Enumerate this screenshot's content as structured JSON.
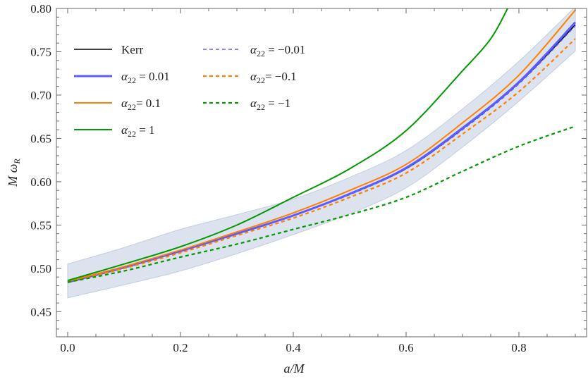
{
  "chart_data": {
    "type": "line",
    "title": "",
    "xlabel": "a/M",
    "ylabel": {
      "main": "M ω",
      "sub": "R"
    },
    "xlim": [
      -0.02,
      0.92
    ],
    "ylim": [
      0.421,
      0.8
    ],
    "x_ticks": [
      "0.0",
      "0.2",
      "0.4",
      "0.6",
      "0.8"
    ],
    "x_tick_values": [
      0,
      0.2,
      0.4,
      0.6,
      0.8
    ],
    "y_ticks": [
      "0.45",
      "0.50",
      "0.55",
      "0.60",
      "0.65",
      "0.70",
      "0.75",
      "0.80"
    ],
    "y_tick_values": [
      0.45,
      0.5,
      0.55,
      0.6,
      0.65,
      0.7,
      0.75,
      0.8
    ],
    "grid": false,
    "legend_placement": "top-left",
    "band": {
      "color": "#dde3ee",
      "edge_color": "#c3cde0",
      "x": [
        0,
        0.1,
        0.2,
        0.3,
        0.4,
        0.5,
        0.6,
        0.7,
        0.8,
        0.9
      ],
      "upper": [
        0.505,
        0.524,
        0.545,
        0.562,
        0.58,
        0.605,
        0.636,
        0.684,
        0.739,
        0.802
      ],
      "lower": [
        0.466,
        0.481,
        0.497,
        0.517,
        0.539,
        0.563,
        0.593,
        0.64,
        0.693,
        0.751
      ]
    },
    "series": [
      {
        "name": "Kerr",
        "color": "#000000",
        "dash": false,
        "width": 1.6,
        "x": [
          0,
          0.1,
          0.2,
          0.3,
          0.4,
          0.5,
          0.6,
          0.7,
          0.8,
          0.9
        ],
        "y": [
          0.484,
          0.501,
          0.52,
          0.54,
          0.561,
          0.586,
          0.615,
          0.661,
          0.714,
          0.781
        ],
        "legend": {
          "plain": "Kerr"
        }
      },
      {
        "name": "α22 = 0.01",
        "color": "#5b5bff",
        "dash": false,
        "width": 3,
        "x": [
          0,
          0.1,
          0.2,
          0.3,
          0.4,
          0.5,
          0.6,
          0.7,
          0.8,
          0.9
        ],
        "y": [
          0.484,
          0.501,
          0.52,
          0.54,
          0.561,
          0.586,
          0.616,
          0.662,
          0.715,
          0.784
        ],
        "legend": {
          "symbol": "α",
          "sub": "22",
          "rest": " = 0.01"
        }
      },
      {
        "name": "α22= 0.1",
        "color": "#ff8000",
        "dash": false,
        "width": 2,
        "x": [
          0,
          0.1,
          0.2,
          0.3,
          0.4,
          0.5,
          0.6,
          0.7,
          0.8,
          0.9
        ],
        "y": [
          0.485,
          0.502,
          0.521,
          0.542,
          0.564,
          0.59,
          0.62,
          0.668,
          0.723,
          0.798
        ],
        "legend": {
          "symbol": "α",
          "sub": "22",
          "rest": "= 0.1"
        }
      },
      {
        "name": "α22 = 1",
        "color": "#009900",
        "dash": false,
        "width": 2,
        "x": [
          0,
          0.1,
          0.2,
          0.3,
          0.4,
          0.5,
          0.6,
          0.7,
          0.75,
          0.78
        ],
        "y": [
          0.486,
          0.505,
          0.525,
          0.55,
          0.582,
          0.615,
          0.659,
          0.728,
          0.765,
          0.8
        ],
        "legend": {
          "symbol": "α",
          "sub": "22",
          "rest": " = 1"
        }
      },
      {
        "name": "α22 = −0.01",
        "color": "#5b5bff",
        "dash": true,
        "width": 1.5,
        "x": [
          0,
          0.1,
          0.2,
          0.3,
          0.4,
          0.5,
          0.6,
          0.7,
          0.8,
          0.9
        ],
        "y": [
          0.484,
          0.501,
          0.52,
          0.54,
          0.561,
          0.585,
          0.615,
          0.66,
          0.713,
          0.78
        ],
        "legend": {
          "symbol": "α",
          "sub": "22",
          "rest": " = −0.01"
        }
      },
      {
        "name": "α22= −0.1",
        "color": "#ff8000",
        "dash": true,
        "width": 2.2,
        "x": [
          0,
          0.1,
          0.2,
          0.3,
          0.4,
          0.5,
          0.6,
          0.7,
          0.8,
          0.9
        ],
        "y": [
          0.484,
          0.5,
          0.518,
          0.538,
          0.558,
          0.582,
          0.61,
          0.655,
          0.704,
          0.765
        ],
        "legend": {
          "symbol": "α",
          "sub": "22",
          "rest": "= −0.1"
        }
      },
      {
        "name": "α22 = −1",
        "color": "#009900",
        "dash": true,
        "width": 2.2,
        "x": [
          0,
          0.1,
          0.2,
          0.3,
          0.4,
          0.5,
          0.6,
          0.7,
          0.8,
          0.9
        ],
        "y": [
          0.484,
          0.497,
          0.513,
          0.528,
          0.545,
          0.562,
          0.582,
          0.612,
          0.641,
          0.664
        ],
        "legend": {
          "symbol": "α",
          "sub": "22",
          "rest": " = −1"
        }
      }
    ]
  }
}
